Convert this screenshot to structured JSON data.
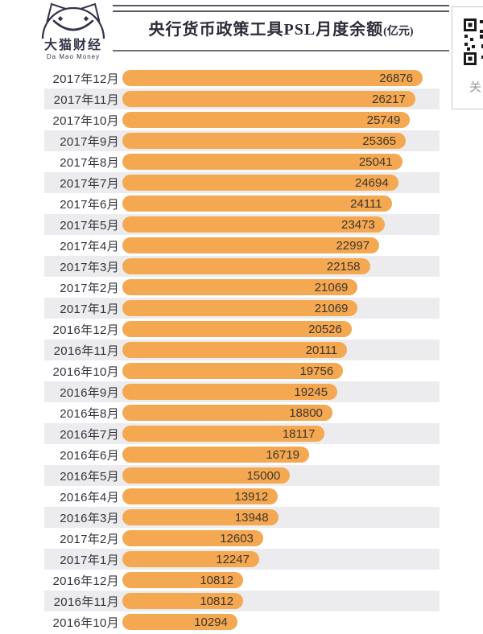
{
  "logo": {
    "name_cn": "大猫财经",
    "name_en": "Da Mao Money"
  },
  "header": {
    "title": "央行货币政策工具PSL月度余额",
    "title_unit": "(亿元)"
  },
  "side_widget": {
    "qr_caption": "关"
  },
  "chart_data": {
    "type": "bar",
    "orientation": "horizontal",
    "title": "央行货币政策工具PSL月度余额(亿元)",
    "categories": [
      "2017年12月",
      "2017年11月",
      "2017年10月",
      "2017年9月",
      "2017年8月",
      "2017年7月",
      "2017年6月",
      "2017年5月",
      "2017年4月",
      "2017年3月",
      "2017年2月",
      "2017年1月",
      "2016年12月",
      "2016年11月",
      "2016年10月",
      "2016年9月",
      "2016年8月",
      "2016年7月",
      "2016年6月",
      "2016年5月",
      "2016年4月",
      "2016年3月",
      "2017年2月",
      "2017年1月",
      "2016年12月",
      "2016年11月",
      "2016年10月"
    ],
    "values": [
      26876,
      26217,
      25749,
      25365,
      25041,
      24694,
      24111,
      23473,
      22997,
      22158,
      21069,
      21069,
      20526,
      20111,
      19756,
      19245,
      18800,
      18117,
      16719,
      15000,
      13912,
      13948,
      12603,
      12247,
      10812,
      10812,
      10294
    ],
    "scale_max": 26876,
    "bar_color": "#F5A852",
    "stripe_color": "#ECECEE",
    "value_label_position": "inside-end",
    "grid": false,
    "legend": false
  }
}
